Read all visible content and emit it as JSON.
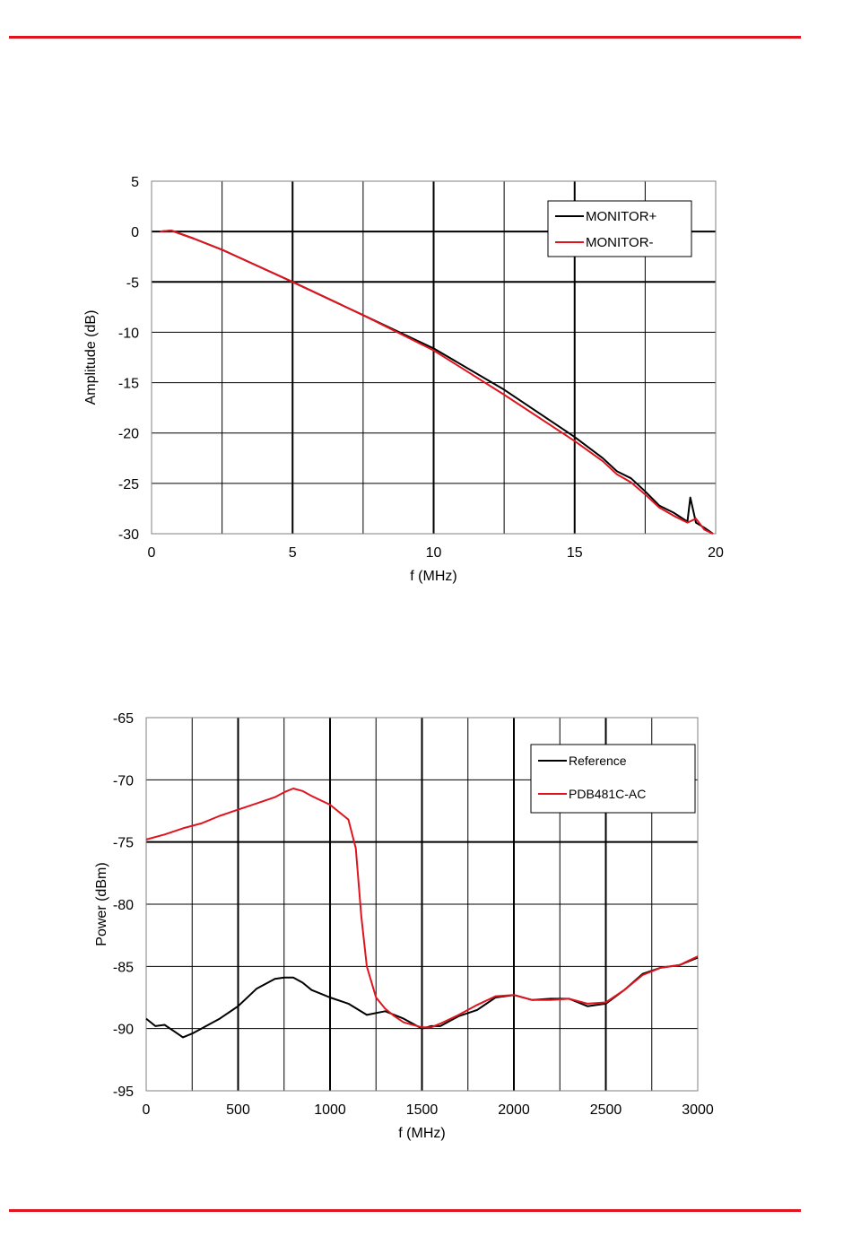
{
  "page": {
    "rule_color": "#e0141e"
  },
  "chart_data": [
    {
      "type": "line",
      "xlabel": "f (MHz)",
      "ylabel": "Amplitude (dB)",
      "xlim": [
        0,
        20
      ],
      "ylim": [
        -30,
        5
      ],
      "xticks": [
        0,
        5,
        10,
        15,
        20
      ],
      "yticks": [
        5,
        0,
        -5,
        -10,
        -15,
        -20,
        -25,
        -30
      ],
      "grid_x_minor": 2.5,
      "grid": true,
      "legend_position": "top-right",
      "series": [
        {
          "name": "MONITOR+",
          "color": "#000000",
          "x": [
            0.3,
            0.7,
            1.5,
            2.5,
            5,
            7.5,
            10,
            12.5,
            15,
            16,
            16.5,
            17,
            17.5,
            18,
            18.5,
            19,
            19.1,
            19.3,
            19.6,
            19.9
          ],
          "y": [
            0,
            0.1,
            -0.7,
            -1.8,
            -5,
            -8.3,
            -11.6,
            -15.7,
            -20.4,
            -22.5,
            -23.8,
            -24.5,
            -25.8,
            -27.2,
            -27.9,
            -28.8,
            -26.4,
            -28.9,
            -29.4,
            -30
          ]
        },
        {
          "name": "MONITOR-",
          "color": "#e0141e",
          "x": [
            0.3,
            0.7,
            1.5,
            2.5,
            5,
            7.5,
            10,
            12.5,
            15,
            16,
            16.5,
            17,
            17.5,
            18,
            18.5,
            19,
            19.3,
            19.6,
            19.9
          ],
          "y": [
            0,
            0.1,
            -0.7,
            -1.8,
            -5,
            -8.3,
            -11.8,
            -16.2,
            -20.8,
            -22.8,
            -24.1,
            -24.9,
            -26.1,
            -27.4,
            -28.2,
            -28.9,
            -28.5,
            -29.6,
            -30
          ]
        }
      ]
    },
    {
      "type": "line",
      "xlabel": "f (MHz)",
      "ylabel": "Power (dBm)",
      "xlim": [
        0,
        3000
      ],
      "ylim": [
        -95,
        -65
      ],
      "xticks": [
        0,
        500,
        1000,
        1500,
        2000,
        2500,
        3000
      ],
      "yticks": [
        -65,
        -70,
        -75,
        -80,
        -85,
        -90,
        -95
      ],
      "grid_x_minor": 250,
      "grid": true,
      "legend_position": "top-right",
      "series": [
        {
          "name": "Reference",
          "color": "#000000",
          "x": [
            0,
            50,
            100,
            150,
            200,
            250,
            300,
            400,
            500,
            600,
            700,
            750,
            800,
            850,
            900,
            950,
            1000,
            1100,
            1200,
            1300,
            1400,
            1500,
            1550,
            1600,
            1700,
            1800,
            1900,
            2000,
            2100,
            2200,
            2300,
            2400,
            2500,
            2600,
            2700,
            2800,
            2900,
            3000
          ],
          "y": [
            -89.2,
            -89.8,
            -89.7,
            -90.2,
            -90.7,
            -90.4,
            -90.0,
            -89.2,
            -88.2,
            -86.8,
            -86.0,
            -85.9,
            -85.9,
            -86.3,
            -86.9,
            -87.2,
            -87.5,
            -88.0,
            -88.9,
            -88.6,
            -89.2,
            -90.0,
            -89.8,
            -89.8,
            -89.0,
            -88.5,
            -87.5,
            -87.3,
            -87.7,
            -87.6,
            -87.6,
            -88.2,
            -88.0,
            -86.9,
            -85.6,
            -85.1,
            -84.9,
            -84.3
          ]
        },
        {
          "name": "PDB481C-AC",
          "color": "#e0141e",
          "x": [
            0,
            100,
            200,
            300,
            400,
            500,
            600,
            700,
            750,
            800,
            850,
            900,
            1000,
            1100,
            1140,
            1170,
            1200,
            1250,
            1300,
            1350,
            1400,
            1500,
            1550,
            1600,
            1700,
            1800,
            1900,
            2000,
            2100,
            2200,
            2300,
            2400,
            2500,
            2600,
            2700,
            2800,
            2900,
            3000
          ],
          "y": [
            -74.8,
            -74.4,
            -73.9,
            -73.5,
            -72.9,
            -72.4,
            -71.9,
            -71.4,
            -71.0,
            -70.7,
            -70.9,
            -71.3,
            -72.0,
            -73.2,
            -75.5,
            -81.0,
            -85.0,
            -87.5,
            -88.4,
            -89.0,
            -89.5,
            -89.9,
            -89.9,
            -89.6,
            -88.9,
            -88.1,
            -87.4,
            -87.3,
            -87.7,
            -87.7,
            -87.6,
            -88.0,
            -87.9,
            -86.9,
            -85.7,
            -85.1,
            -84.9,
            -84.2
          ]
        }
      ]
    }
  ]
}
